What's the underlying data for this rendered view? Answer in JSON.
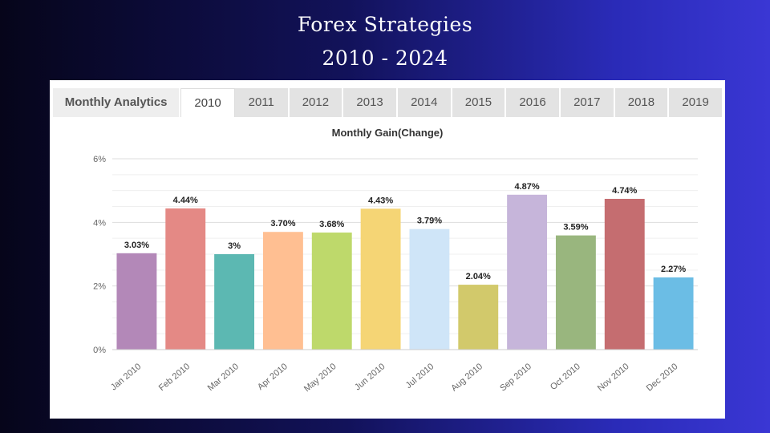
{
  "header": {
    "title_line_1": "Forex Strategies",
    "title_line_2": "2010 - 2024"
  },
  "tabs": {
    "first": "Monthly Analytics",
    "years": [
      "2010",
      "2011",
      "2012",
      "2013",
      "2014",
      "2015",
      "2016",
      "2017",
      "2018",
      "2019"
    ],
    "active": "2010"
  },
  "chart_data": {
    "type": "bar",
    "title": "Monthly Gain(Change)",
    "xlabel": "",
    "ylabel": "",
    "ylim": [
      0,
      6
    ],
    "yticks": [
      "0%",
      "2%",
      "4%",
      "6%"
    ],
    "grid": true,
    "categories": [
      "Jan 2010",
      "Feb 2010",
      "Mar 2010",
      "Apr 2010",
      "May 2010",
      "Jun 2010",
      "Jul 2010",
      "Aug 2010",
      "Sep 2010",
      "Oct 2010",
      "Nov 2010",
      "Dec 2010"
    ],
    "values": [
      3.03,
      4.44,
      3,
      3.7,
      3.68,
      4.43,
      3.79,
      2.04,
      4.87,
      3.59,
      4.74,
      2.27
    ],
    "labels": [
      "3.03%",
      "4.44%",
      "3%",
      "3.70%",
      "3.68%",
      "4.43%",
      "3.79%",
      "2.04%",
      "4.87%",
      "3.59%",
      "4.74%",
      "2.27%"
    ],
    "colors": [
      "#b388b8",
      "#e48985",
      "#5cb8b2",
      "#ffbf92",
      "#bed96b",
      "#f5d575",
      "#cfe5f8",
      "#d2c96b",
      "#c6b5da",
      "#99b67e",
      "#c56d70",
      "#6bbde5"
    ]
  }
}
